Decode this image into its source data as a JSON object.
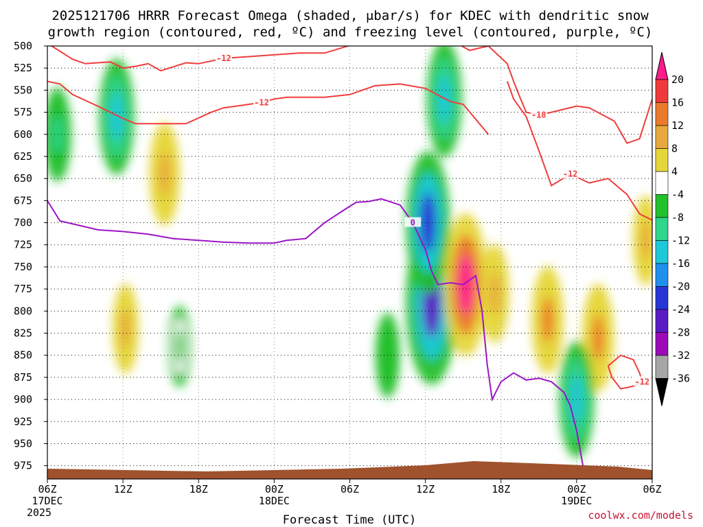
{
  "chart_data": {
    "type": "heatmap",
    "title_line1": "2025121706 HRRR Forecast Omega (shaded, μbar/s) for KDEC with dendritic snow",
    "title_line2": "growth region (contoured, red, ºC) and freezing level (contoured, purple, ºC)",
    "xlabel": "Forecast Time (UTC)",
    "ylabel": "",
    "y_ticks": [
      "500",
      "525",
      "550",
      "575",
      "600",
      "625",
      "650",
      "675",
      "700",
      "725",
      "750",
      "775",
      "800",
      "825",
      "850",
      "875",
      "900",
      "925",
      "950",
      "975"
    ],
    "x_ticks": [
      {
        "hour": 0,
        "label": "06Z",
        "sub1": "17DEC",
        "sub2": "2025"
      },
      {
        "hour": 6,
        "label": "12Z",
        "sub1": "",
        "sub2": ""
      },
      {
        "hour": 12,
        "label": "18Z",
        "sub1": "",
        "sub2": ""
      },
      {
        "hour": 18,
        "label": "00Z",
        "sub1": "18DEC",
        "sub2": ""
      },
      {
        "hour": 24,
        "label": "06Z",
        "sub1": "",
        "sub2": ""
      },
      {
        "hour": 30,
        "label": "12Z",
        "sub1": "",
        "sub2": ""
      },
      {
        "hour": 36,
        "label": "18Z",
        "sub1": "",
        "sub2": ""
      },
      {
        "hour": 42,
        "label": "00Z",
        "sub1": "19DEC",
        "sub2": ""
      },
      {
        "hour": 48,
        "label": "06Z",
        "sub1": "",
        "sub2": ""
      }
    ],
    "x_range_hours": [
      0,
      48
    ],
    "y_range_hpa": [
      500,
      990
    ],
    "colorbar": {
      "labels": [
        "20",
        "16",
        "12",
        "8",
        "4",
        "-4",
        "-8",
        "-12",
        "-16",
        "-20",
        "-24",
        "-28",
        "-32",
        "-36"
      ],
      "colors": [
        "#ff1a8c",
        "#f03a3a",
        "#ec7a2c",
        "#e8a93c",
        "#e6d63a",
        "#ffffff",
        "#22c02a",
        "#2fd68c",
        "#1fc8d8",
        "#1f90ee",
        "#2636d6",
        "#5a1ac4",
        "#9a0ab8",
        "#a6a6a6",
        "#000000"
      ]
    },
    "omega_features": [
      {
        "hour": 0.8,
        "hpa": 600,
        "value": -9
      },
      {
        "hour": 5.5,
        "hpa": 580,
        "value": -14
      },
      {
        "hour": 9.3,
        "hpa": 645,
        "value": 11
      },
      {
        "hour": 6.2,
        "hpa": 820,
        "value": 8
      },
      {
        "hour": 10.5,
        "hpa": 840,
        "value": -6
      },
      {
        "hour": 27.0,
        "hpa": 850,
        "value": -7
      },
      {
        "hour": 30.5,
        "hpa": 790,
        "value": -25
      },
      {
        "hour": 30.2,
        "hpa": 700,
        "value": -20
      },
      {
        "hour": 33.2,
        "hpa": 770,
        "value": 20
      },
      {
        "hour": 31.5,
        "hpa": 560,
        "value": -14
      },
      {
        "hour": 35.5,
        "hpa": 780,
        "value": 10
      },
      {
        "hour": 39.7,
        "hpa": 810,
        "value": 12
      },
      {
        "hour": 43.7,
        "hpa": 830,
        "value": 12
      },
      {
        "hour": 42.0,
        "hpa": 900,
        "value": -14
      },
      {
        "hour": 47.5,
        "hpa": 720,
        "value": 8
      }
    ],
    "dendritic_contours": [
      {
        "label": "-12",
        "hours": [
          0,
          2,
          3,
          5,
          6,
          7,
          8,
          9,
          11,
          12,
          14,
          16,
          18,
          20,
          22,
          25,
          27,
          29,
          31,
          32
        ],
        "hpa": [
          497,
          515,
          520,
          518,
          525,
          523,
          520,
          528,
          519,
          520,
          514,
          512,
          510,
          508,
          508,
          495,
          486,
          488,
          492,
          492
        ]
      },
      {
        "label": "-12",
        "hours": [
          0,
          1,
          2,
          4,
          6,
          7,
          8,
          9.5,
          11,
          13,
          14,
          15,
          17,
          18,
          19,
          20,
          22,
          24,
          26,
          28,
          30,
          32,
          33,
          35
        ],
        "hpa": [
          540,
          543,
          555,
          568,
          582,
          588,
          588,
          588,
          588,
          575,
          570,
          568,
          564,
          560,
          558,
          558,
          558,
          555,
          545,
          543,
          548,
          563,
          566,
          600
        ]
      },
      {
        "label": "-18",
        "hours": [
          30,
          32.5,
          33.5,
          35,
          36.5,
          37,
          37.5,
          38,
          39,
          40,
          42,
          43,
          45,
          46,
          47,
          48
        ],
        "hpa": [
          496,
          497,
          505,
          500,
          520,
          540,
          558,
          575,
          578,
          575,
          568,
          570,
          585,
          610,
          605,
          560
        ]
      },
      {
        "label": "-12",
        "hours": [
          36.5,
          37,
          38,
          39,
          40,
          41.5,
          43,
          44.5,
          46,
          47,
          48
        ],
        "hpa": [
          540,
          560,
          580,
          618,
          658,
          645,
          655,
          650,
          668,
          690,
          697
        ]
      },
      {
        "label": "-12",
        "hours": [
          44.5,
          45.5,
          46.5,
          47,
          47.2,
          46.5,
          45.5,
          44.8,
          44.5
        ],
        "hpa": [
          862,
          850,
          855,
          870,
          880,
          885,
          888,
          875,
          862
        ]
      }
    ],
    "freezing_contour": {
      "label": "0",
      "hours": [
        0,
        1,
        2.5,
        4,
        6,
        8,
        10,
        12,
        14,
        16,
        18,
        19,
        20.5,
        22,
        23.5,
        24.5,
        25.5,
        26.5,
        28,
        29,
        30,
        30.5,
        31,
        32,
        33,
        34,
        34.5,
        34.9,
        35.3,
        36,
        37,
        38,
        39,
        40,
        41,
        41.5,
        42,
        42.5
      ],
      "hpa": [
        675,
        698,
        703,
        708,
        710,
        713,
        718,
        720,
        722,
        723,
        723,
        720,
        718,
        700,
        686,
        677,
        676,
        673,
        680,
        700,
        730,
        755,
        770,
        768,
        770,
        760,
        800,
        860,
        900,
        880,
        870,
        878,
        876,
        880,
        892,
        907,
        935,
        975
      ]
    }
  }
}
